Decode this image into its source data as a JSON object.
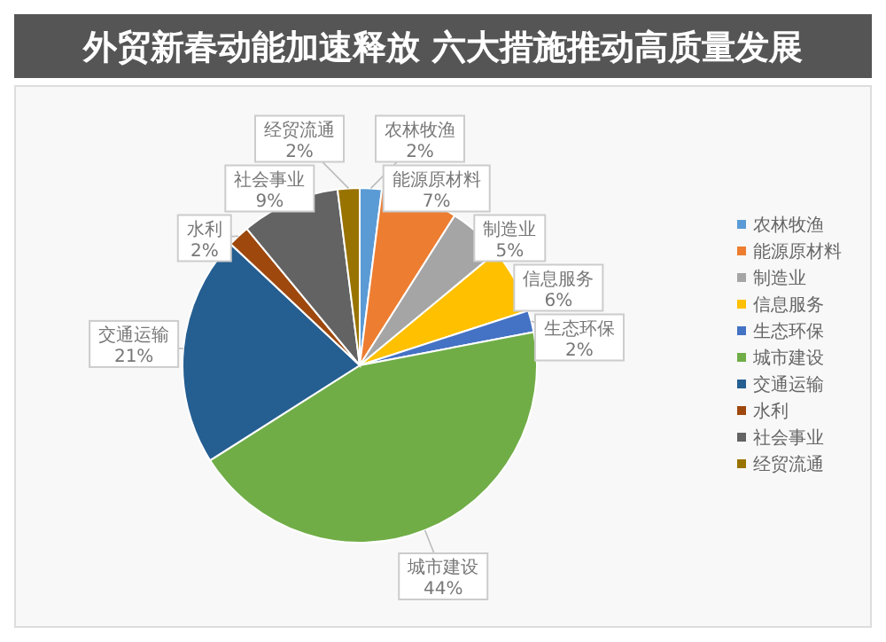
{
  "chart_data": {
    "type": "pie",
    "title": "外贸新春动能加速释放 六大措施推动高质量发展",
    "categories": [
      "农林牧渔",
      "能源原材料",
      "制造业",
      "信息服务",
      "生态环保",
      "城市建设",
      "交通运输",
      "水利",
      "社会事业",
      "经贸流通"
    ],
    "values": [
      2,
      7,
      5,
      6,
      2,
      44,
      21,
      2,
      9,
      2
    ],
    "value_labels": [
      "2%",
      "7%",
      "5%",
      "6%",
      "2%",
      "44%",
      "21%",
      "2%",
      "9%",
      "2%"
    ],
    "colors": [
      "#5b9bd5",
      "#ed7d31",
      "#a5a5a5",
      "#ffc000",
      "#4472c4",
      "#70ad47",
      "#255e91",
      "#9e480e",
      "#636363",
      "#997300"
    ],
    "legend": "right"
  }
}
